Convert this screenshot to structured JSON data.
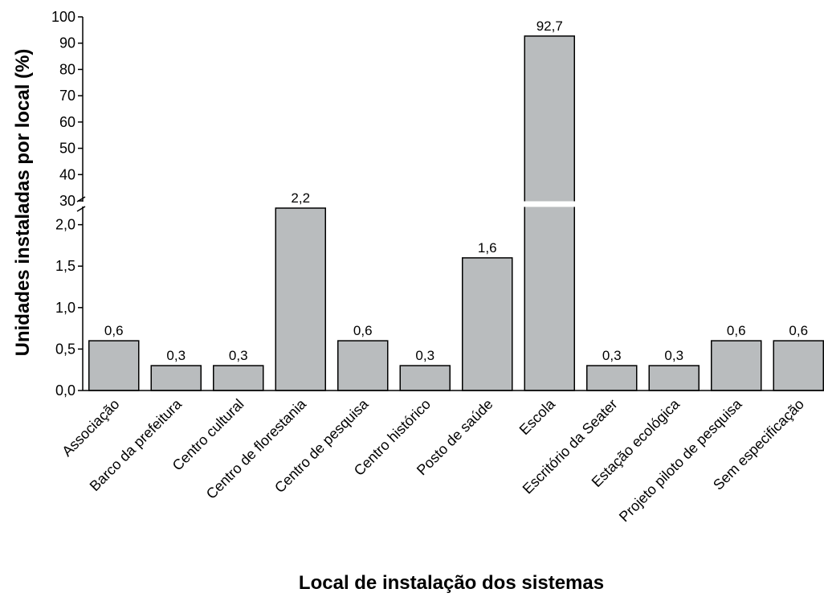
{
  "chart_data": {
    "type": "bar",
    "xlabel": "Local de instalação dos sistemas",
    "ylabel": "Unidades instaladas por local (%)",
    "categories": [
      "Associação",
      "Barco da prefeitura",
      "Centro cultural",
      "Centro de florestania",
      "Centro de pesquisa",
      "Centro histórico",
      "Posto de saúde",
      "Escola",
      "Escritório da Seater",
      "Estação ecológica",
      "Projeto piloto de pesquisa",
      "Sem especificação"
    ],
    "values": [
      0.6,
      0.3,
      0.3,
      2.2,
      0.6,
      0.3,
      1.6,
      92.7,
      0.3,
      0.3,
      0.6,
      0.6
    ],
    "data_labels": [
      "0,6",
      "0,3",
      "0,3",
      "2,2",
      "0,6",
      "0,3",
      "1,6",
      "92,7",
      "0,3",
      "0,3",
      "0,6",
      "0,6"
    ],
    "y_axis_broken": true,
    "ylim_lower": [
      0,
      2.2
    ],
    "ylim_upper": [
      30,
      100
    ],
    "yticks_lower": [
      0,
      0.5,
      1.0,
      1.5,
      2.0
    ],
    "ytick_labels_lower": [
      "0,0",
      "0,5",
      "1,0",
      "1,5",
      "2,0"
    ],
    "yticks_upper": [
      30,
      40,
      50,
      60,
      70,
      80,
      90,
      100
    ],
    "ytick_labels_upper": [
      "30",
      "40",
      "50",
      "60",
      "70",
      "80",
      "90",
      "100"
    ],
    "grid": false,
    "bar_color": "#b9bcbe",
    "edge_color": "#000000"
  }
}
